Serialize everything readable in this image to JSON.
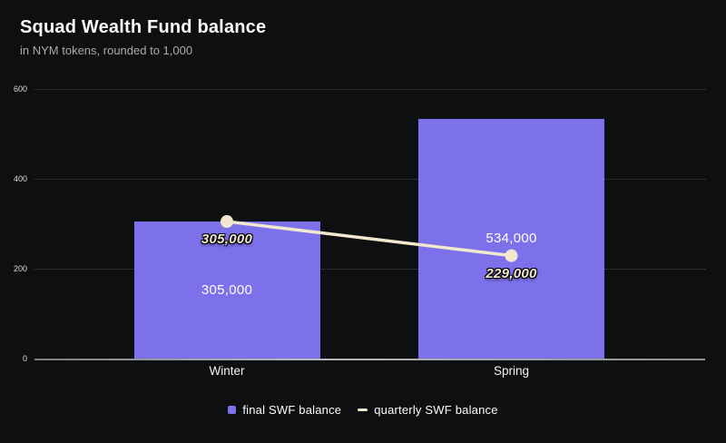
{
  "chart_data": {
    "type": "bar",
    "title": "Squad Wealth Fund balance",
    "subtitle": "in NYM tokens, rounded to 1,000",
    "categories": [
      "Winter",
      "Spring"
    ],
    "series": [
      {
        "name": "final SWF balance",
        "kind": "bar",
        "values": [
          305000,
          534000
        ],
        "labels": [
          "305,000",
          "534,000"
        ],
        "color": "#7c70eb"
      },
      {
        "name": "quarterly SWF balance",
        "kind": "line",
        "values": [
          305000,
          229000
        ],
        "labels": [
          "305,000",
          "229,000"
        ],
        "color": "#f2e8cf"
      }
    ],
    "ylim": [
      0,
      600000
    ],
    "yticks": [
      0,
      200,
      400,
      600
    ],
    "ytick_scale": "thousands",
    "grid": true,
    "legend_position": "bottom",
    "colors": {
      "background": "#0e0f10",
      "bar": "#7c70eb",
      "line": "#f2e8cf",
      "grid": "#45464a",
      "zero_line": "#a5a5a5",
      "title_text": "#fafafa",
      "subtitle_text": "#a9abad",
      "tick_text": "#dcdcdc",
      "data_label_text": "#ffffff"
    }
  }
}
